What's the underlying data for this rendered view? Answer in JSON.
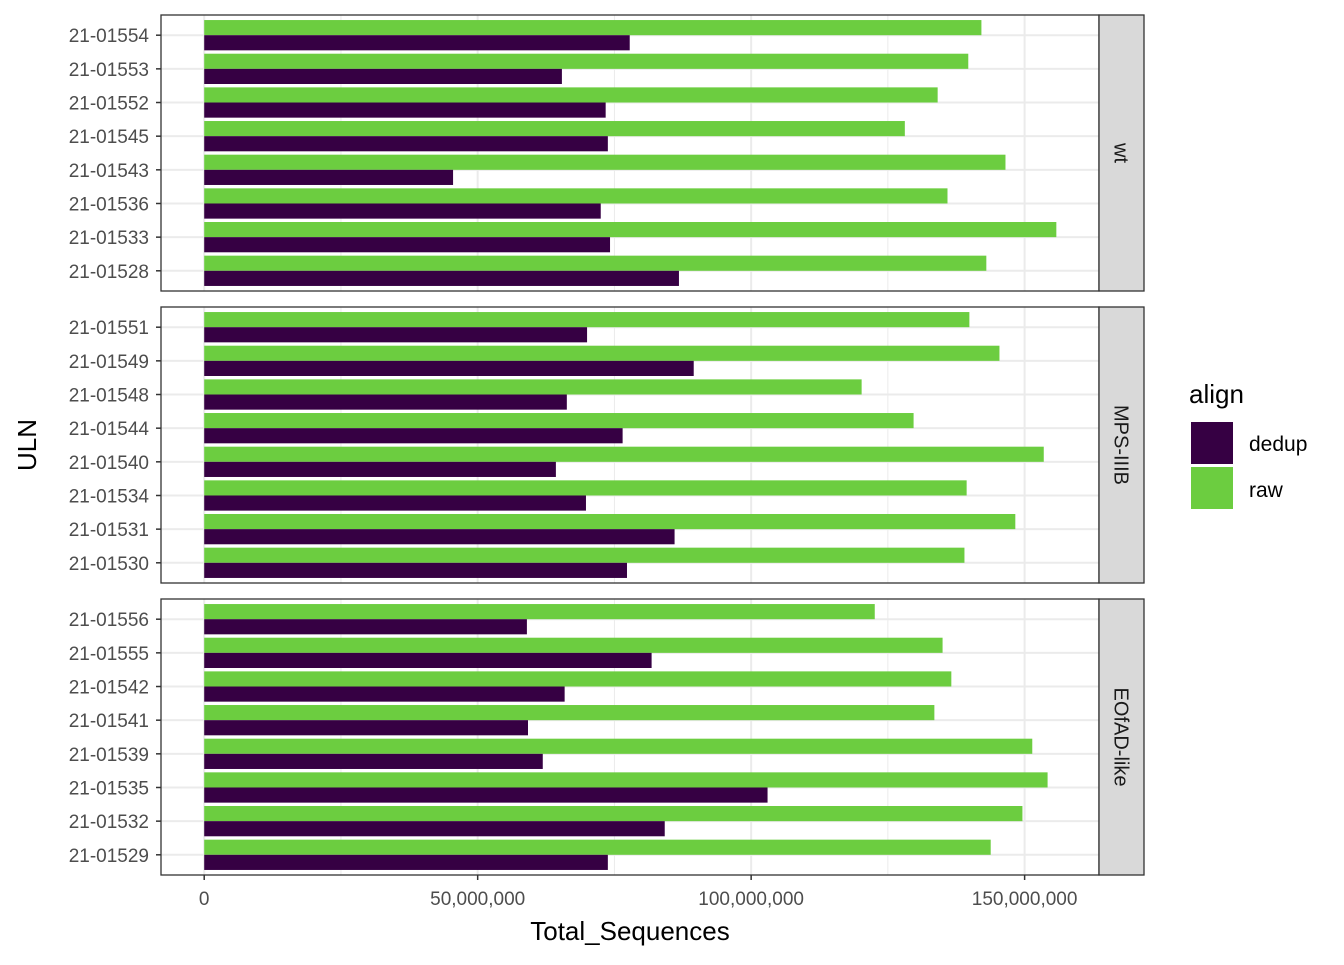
{
  "chart_data": {
    "type": "bar",
    "orientation": "horizontal",
    "xlabel": "Total_Sequences",
    "ylabel": "ULN",
    "xlim": [
      -7900000,
      163600000
    ],
    "xticks": [
      0,
      50000000,
      100000000,
      150000000
    ],
    "xtick_labels": [
      "0",
      "50,000,000",
      "100,000,000",
      "150,000,000"
    ],
    "grid": true,
    "legend": {
      "title": "align",
      "placement": "right",
      "entries": [
        {
          "label": "dedup",
          "color": "#360043"
        },
        {
          "label": "raw",
          "color": "#6CCD40"
        }
      ]
    },
    "facets": [
      {
        "label": "wt",
        "categories": [
          "21-01554",
          "21-01553",
          "21-01552",
          "21-01545",
          "21-01543",
          "21-01536",
          "21-01533",
          "21-01528"
        ],
        "series": [
          {
            "name": "raw",
            "values": [
              142100000,
              139700000,
              134100000,
              128100000,
              146500000,
              135900000,
              155800000,
              143000000
            ]
          },
          {
            "name": "dedup",
            "values": [
              77800000,
              65400000,
              73400000,
              73800000,
              45500000,
              72500000,
              74200000,
              86800000
            ]
          }
        ]
      },
      {
        "label": "MPS-IIIB",
        "categories": [
          "21-01551",
          "21-01549",
          "21-01548",
          "21-01544",
          "21-01540",
          "21-01534",
          "21-01531",
          "21-01530"
        ],
        "series": [
          {
            "name": "raw",
            "values": [
              139900000,
              145400000,
              120200000,
              129700000,
              153500000,
              139400000,
              148300000,
              139000000
            ]
          },
          {
            "name": "dedup",
            "values": [
              70000000,
              89500000,
              66300000,
              76500000,
              64300000,
              69800000,
              86000000,
              77300000
            ]
          }
        ]
      },
      {
        "label": "EOfAD-like",
        "categories": [
          "21-01556",
          "21-01555",
          "21-01542",
          "21-01541",
          "21-01539",
          "21-01535",
          "21-01532",
          "21-01529"
        ],
        "series": [
          {
            "name": "raw",
            "values": [
              122600000,
              135000000,
              136600000,
              133500000,
              151400000,
              154200000,
              149600000,
              143800000
            ]
          },
          {
            "name": "dedup",
            "values": [
              59000000,
              81800000,
              65900000,
              59200000,
              61900000,
              103000000,
              84200000,
              73800000
            ]
          }
        ]
      }
    ]
  }
}
